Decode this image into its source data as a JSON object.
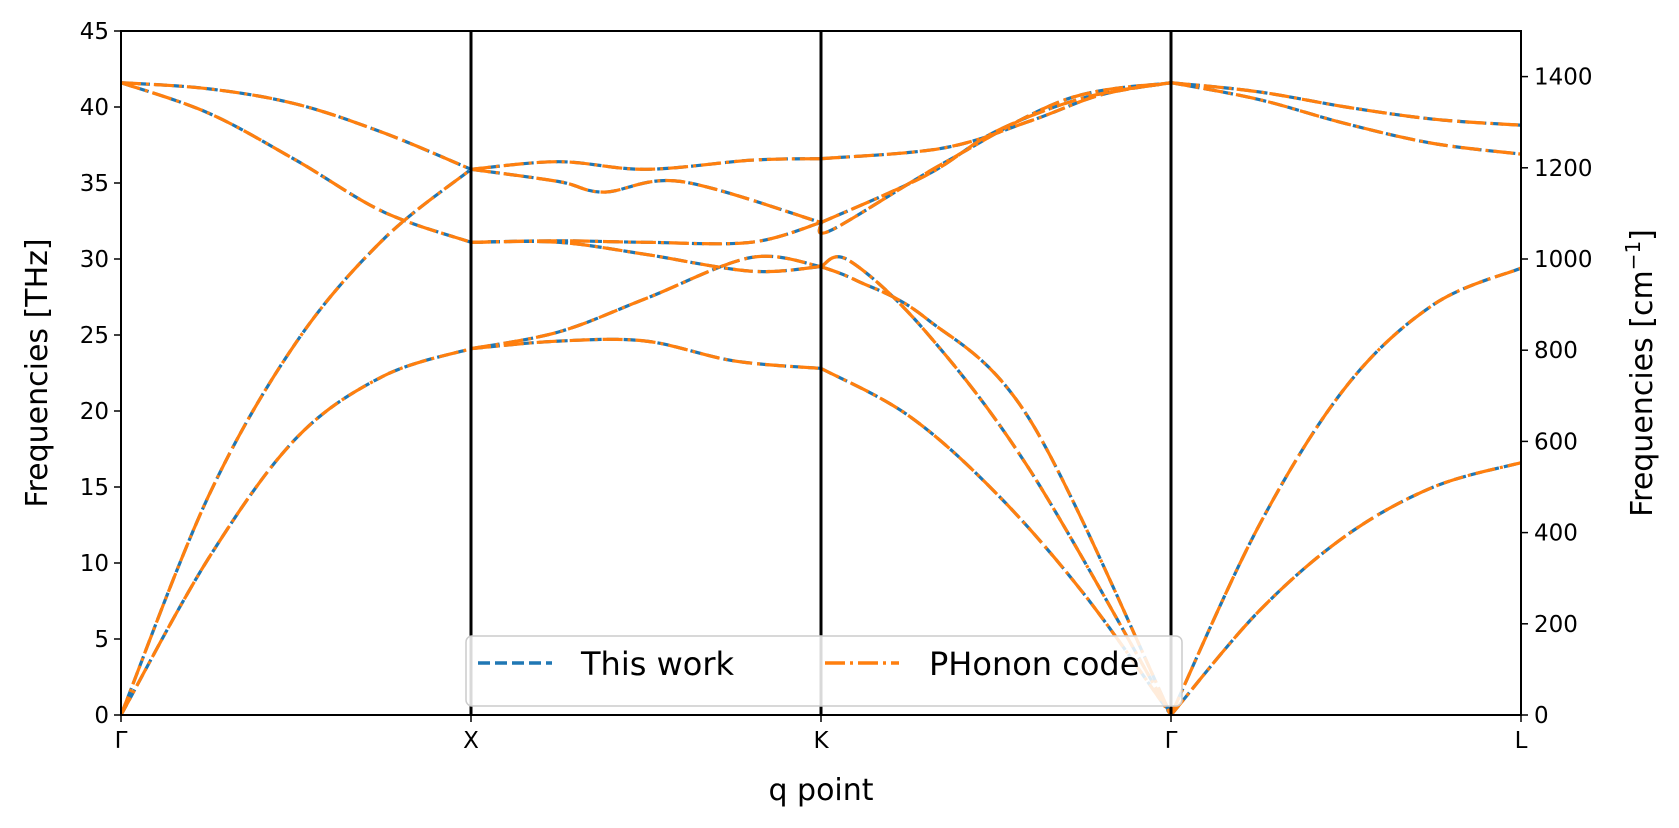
{
  "chart_data": {
    "type": "line",
    "xlabel": "q point",
    "ylabel": "Frequencies [THz]",
    "ylabel_right": "Frequencies [cm",
    "ylabel_right_sup": "−1",
    "ylabel_right_close": "]",
    "ylim": [
      0,
      45
    ],
    "ylim_right": [
      0,
      1500
    ],
    "yticks": [
      "0",
      "5",
      "10",
      "15",
      "20",
      "25",
      "30",
      "35",
      "40",
      "45"
    ],
    "yticks_right": [
      "0",
      "200",
      "400",
      "600",
      "800",
      "1000",
      "1200",
      "1400"
    ],
    "xticks": [
      "Γ",
      "X",
      "K",
      "Γ",
      "L"
    ],
    "xlim": [
      0,
      4
    ],
    "grid": false,
    "legend_position": "lower-center",
    "legend": [
      {
        "name": "This work",
        "color": "#1f77b4",
        "style": "dashed"
      },
      {
        "name": "PHonon code",
        "color": "#ff7f0e",
        "style": "dashdot"
      }
    ],
    "series": [
      {
        "x": [
          0,
          0.25,
          0.5,
          0.75,
          1.0
        ],
        "y": [
          0,
          10.3,
          18.2,
          22.3,
          24.1
        ]
      },
      {
        "x": [
          0,
          0.25,
          0.5,
          0.75,
          1.0
        ],
        "y": [
          0,
          14.4,
          24.5,
          31.3,
          35.9
        ]
      },
      {
        "x": [
          0,
          0.25,
          0.5,
          0.75,
          1.0
        ],
        "y": [
          41.6,
          39.6,
          36.5,
          33.1,
          31.1
        ]
      },
      {
        "x": [
          0,
          0.25,
          0.5,
          0.75,
          1.0
        ],
        "y": [
          41.6,
          41.2,
          40.2,
          38.3,
          35.9
        ]
      },
      {
        "x": [
          1.0,
          1.25,
          1.5,
          1.75,
          2.0
        ],
        "y": [
          24.1,
          24.6,
          24.6,
          23.3,
          22.8
        ]
      },
      {
        "x": [
          1.0,
          1.25,
          1.5,
          1.8,
          2.0
        ],
        "y": [
          24.1,
          25.2,
          27.4,
          30.1,
          29.5
        ]
      },
      {
        "x": [
          1.0,
          1.25,
          1.5,
          1.8,
          2.0
        ],
        "y": [
          31.1,
          31.1,
          30.3,
          29.2,
          29.5
        ]
      },
      {
        "x": [
          1.0,
          1.25,
          1.5,
          1.8,
          2.0
        ],
        "y": [
          31.1,
          31.2,
          31.1,
          31.1,
          32.4
        ]
      },
      {
        "x": [
          1.0,
          1.25,
          1.38,
          1.6,
          2.0
        ],
        "y": [
          35.9,
          35.1,
          34.4,
          35.1,
          32.4
        ]
      },
      {
        "x": [
          1.0,
          1.25,
          1.5,
          1.8,
          2.0
        ],
        "y": [
          35.9,
          36.4,
          35.9,
          36.5,
          36.6
        ]
      },
      {
        "x": [
          2.0,
          2.25,
          2.5,
          2.75,
          3.0
        ],
        "y": [
          22.8,
          19.7,
          14.6,
          8.0,
          0
        ]
      },
      {
        "x": [
          2.0,
          2.08,
          2.3,
          2.6,
          3.0
        ],
        "y": [
          29.5,
          29.9,
          25.2,
          16.0,
          0
        ]
      },
      {
        "x": [
          2.0,
          2.1,
          2.3,
          2.6,
          3.0
        ],
        "y": [
          29.5,
          28.6,
          26.1,
          19.3,
          0
        ]
      },
      {
        "x": [
          2.0,
          2.03,
          2.35,
          2.7,
          3.0
        ],
        "y": [
          32.4,
          31.9,
          36.3,
          40.5,
          41.6
        ]
      },
      {
        "x": [
          2.0,
          2.3,
          2.5,
          2.75,
          3.0
        ],
        "y": [
          32.4,
          35.5,
          38.4,
          40.6,
          41.6
        ]
      },
      {
        "x": [
          2.0,
          2.35,
          2.6,
          2.8,
          3.0
        ],
        "y": [
          36.6,
          37.3,
          39.1,
          40.8,
          41.6
        ]
      },
      {
        "x": [
          3.0,
          3.25,
          3.5,
          3.75,
          4.0
        ],
        "y": [
          0,
          6.8,
          11.8,
          15.0,
          16.6
        ]
      },
      {
        "x": [
          3.0,
          3.25,
          3.5,
          3.75,
          4.0
        ],
        "y": [
          0,
          12.4,
          21.6,
          27.0,
          29.4
        ]
      },
      {
        "x": [
          3.0,
          3.25,
          3.5,
          3.75,
          4.0
        ],
        "y": [
          41.6,
          40.5,
          38.9,
          37.6,
          36.9
        ]
      },
      {
        "x": [
          3.0,
          3.25,
          3.5,
          3.75,
          4.0
        ],
        "y": [
          41.6,
          41.0,
          40.0,
          39.2,
          38.8
        ]
      }
    ]
  }
}
